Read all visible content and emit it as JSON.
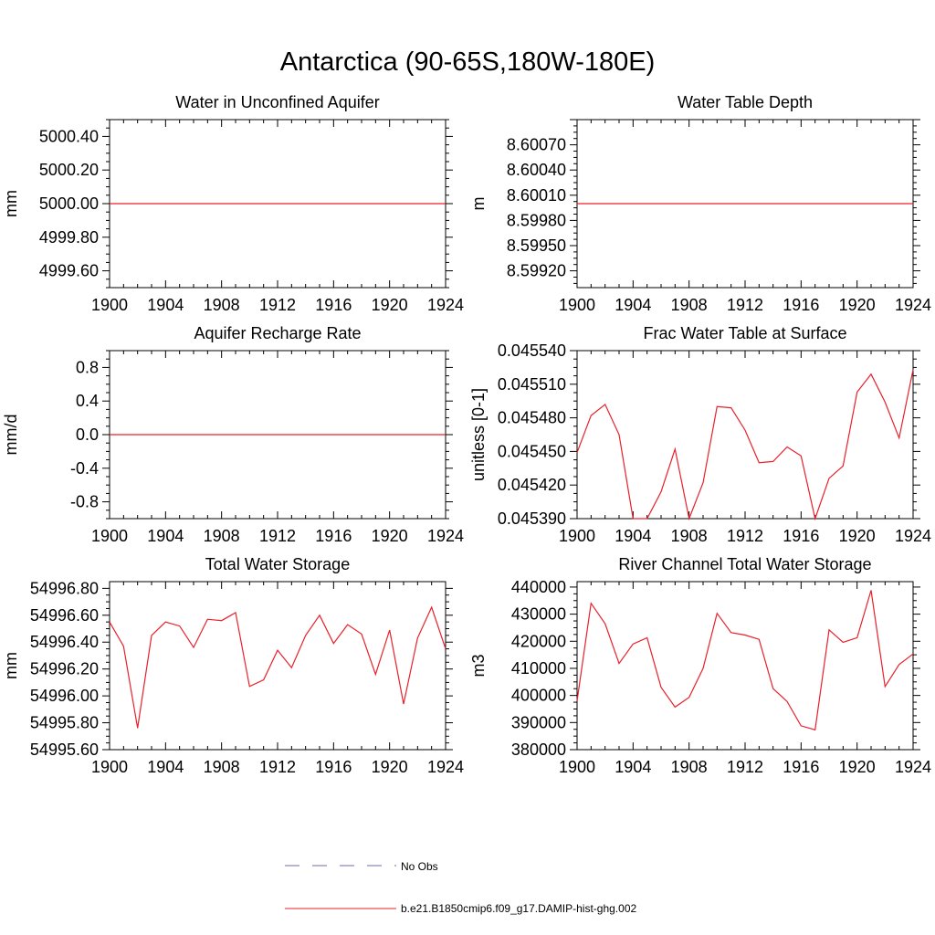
{
  "title": "Antarctica (90-65S,180W-180E)",
  "legend": {
    "obs_label": "No Obs",
    "model_label": "b.e21.B1850cmip6.f09_g17.DAMIP-hist-ghg.002",
    "obs_color": "#6b6bb8",
    "model_color": "#e8202a"
  },
  "chart_data": [
    {
      "type": "line",
      "title": "Water in Unconfined Aquifer",
      "ylabel": "mm",
      "xlim": [
        1900,
        1924
      ],
      "ylim": [
        4999.5,
        5000.5
      ],
      "xticks": [
        1900,
        1904,
        1908,
        1912,
        1916,
        1920,
        1924
      ],
      "xtick_labels": [
        "1900",
        "1904",
        "1908",
        "1912",
        "1916",
        "1920",
        "1924"
      ],
      "yticks": [
        4999.6,
        4999.8,
        5000.0,
        5000.2,
        5000.4
      ],
      "ytick_labels": [
        "4999.60",
        "4999.80",
        "5000.00",
        "5000.20",
        "5000.40"
      ],
      "series": [
        {
          "x": [
            1900,
            1924
          ],
          "y": [
            5000.0,
            5000.0
          ]
        }
      ]
    },
    {
      "type": "line",
      "title": "Water Table Depth",
      "ylabel": "m",
      "xlim": [
        1900,
        1924
      ],
      "ylim": [
        8.599,
        8.601
      ],
      "xticks": [
        1900,
        1904,
        1908,
        1912,
        1916,
        1920,
        1924
      ],
      "xtick_labels": [
        "1900",
        "1904",
        "1908",
        "1912",
        "1916",
        "1920",
        "1924"
      ],
      "yticks": [
        8.5992,
        8.5995,
        8.5998,
        8.6001,
        8.6004,
        8.6007
      ],
      "ytick_labels": [
        "8.59920",
        "8.59950",
        "8.59980",
        "8.60010",
        "8.60040",
        "8.60070"
      ],
      "series": [
        {
          "x": [
            1900,
            1924
          ],
          "y": [
            8.6,
            8.6
          ]
        }
      ]
    },
    {
      "type": "line",
      "title": "Aquifer Recharge Rate",
      "ylabel": "mm/d",
      "xlim": [
        1900,
        1924
      ],
      "ylim": [
        -1.0,
        1.0
      ],
      "xticks": [
        1900,
        1904,
        1908,
        1912,
        1916,
        1920,
        1924
      ],
      "xtick_labels": [
        "1900",
        "1904",
        "1908",
        "1912",
        "1916",
        "1920",
        "1924"
      ],
      "yticks": [
        -0.8,
        -0.4,
        0.0,
        0.4,
        0.8
      ],
      "ytick_labels": [
        "-0.8",
        "-0.4",
        "0.0",
        "0.4",
        "0.8"
      ],
      "series": [
        {
          "x": [
            1900,
            1924
          ],
          "y": [
            0.0,
            0.0
          ]
        }
      ]
    },
    {
      "type": "line",
      "title": "Frac Water Table at Surface",
      "ylabel": "unitless [0-1]",
      "xlim": [
        1900,
        1924
      ],
      "ylim": [
        0.04539,
        0.04554
      ],
      "xticks": [
        1900,
        1904,
        1908,
        1912,
        1916,
        1920,
        1924
      ],
      "xtick_labels": [
        "1900",
        "1904",
        "1908",
        "1912",
        "1916",
        "1920",
        "1924"
      ],
      "yticks": [
        0.04539,
        0.04542,
        0.04545,
        0.04548,
        0.04551,
        0.04554
      ],
      "ytick_labels": [
        "0.045390",
        "0.045420",
        "0.045450",
        "0.045480",
        "0.045510",
        "0.045540"
      ],
      "series": [
        {
          "x": [
            1900,
            1901,
            1902,
            1903,
            1904,
            1905,
            1906,
            1907,
            1908,
            1909,
            1910,
            1911,
            1912,
            1913,
            1914,
            1915,
            1916,
            1917,
            1918,
            1919,
            1920,
            1921,
            1922,
            1923,
            1924
          ],
          "y": [
            0.045449,
            0.045482,
            0.045492,
            0.045465,
            0.04539,
            0.04539,
            0.045414,
            0.045452,
            0.04539,
            0.045422,
            0.04549,
            0.045489,
            0.045469,
            0.04544,
            0.045441,
            0.045454,
            0.045446,
            0.04539,
            0.045426,
            0.045437,
            0.045503,
            0.045519,
            0.045494,
            0.045462,
            0.045523
          ]
        }
      ]
    },
    {
      "type": "line",
      "title": "Total Water Storage",
      "ylabel": "mm",
      "xlim": [
        1900,
        1924
      ],
      "ylim": [
        54995.6,
        54996.85
      ],
      "xticks": [
        1900,
        1904,
        1908,
        1912,
        1916,
        1920,
        1924
      ],
      "xtick_labels": [
        "1900",
        "1904",
        "1908",
        "1912",
        "1916",
        "1920",
        "1924"
      ],
      "yticks": [
        54995.6,
        54995.8,
        54996.0,
        54996.2,
        54996.4,
        54996.6,
        54996.8
      ],
      "ytick_labels": [
        "54995.60",
        "54995.80",
        "54996.00",
        "54996.20",
        "54996.40",
        "54996.60",
        "54996.80"
      ],
      "series": [
        {
          "x": [
            1900,
            1901,
            1902,
            1903,
            1904,
            1905,
            1906,
            1907,
            1908,
            1909,
            1910,
            1911,
            1912,
            1913,
            1914,
            1915,
            1916,
            1917,
            1918,
            1919,
            1920,
            1921,
            1922,
            1923,
            1924
          ],
          "y": [
            54996.55,
            54996.37,
            54995.76,
            54996.45,
            54996.55,
            54996.52,
            54996.36,
            54996.57,
            54996.56,
            54996.62,
            54996.07,
            54996.12,
            54996.34,
            54996.21,
            54996.45,
            54996.6,
            54996.39,
            54996.53,
            54996.46,
            54996.16,
            54996.49,
            54995.94,
            54996.43,
            54996.66,
            54996.35
          ]
        }
      ]
    },
    {
      "type": "line",
      "title": "River Channel Total Water Storage",
      "ylabel": "m3",
      "xlim": [
        1900,
        1924
      ],
      "ylim": [
        380000,
        442000
      ],
      "xticks": [
        1900,
        1904,
        1908,
        1912,
        1916,
        1920,
        1924
      ],
      "xtick_labels": [
        "1900",
        "1904",
        "1908",
        "1912",
        "1916",
        "1920",
        "1924"
      ],
      "yticks": [
        380000,
        390000,
        400000,
        410000,
        420000,
        430000,
        440000
      ],
      "ytick_labels": [
        "380000",
        "390000",
        "400000",
        "410000",
        "420000",
        "430000",
        "440000"
      ],
      "series": [
        {
          "x": [
            1900,
            1901,
            1902,
            1903,
            1904,
            1905,
            1906,
            1907,
            1908,
            1909,
            1910,
            1911,
            1912,
            1913,
            1914,
            1915,
            1916,
            1917,
            1918,
            1919,
            1920,
            1921,
            1922,
            1923,
            1924
          ],
          "y": [
            398000,
            434000,
            426500,
            411800,
            419000,
            421300,
            403000,
            395700,
            399300,
            410000,
            430300,
            423200,
            422300,
            420700,
            402500,
            397800,
            388800,
            387300,
            424200,
            419600,
            421300,
            438800,
            403300,
            411400,
            415300
          ]
        }
      ]
    }
  ]
}
